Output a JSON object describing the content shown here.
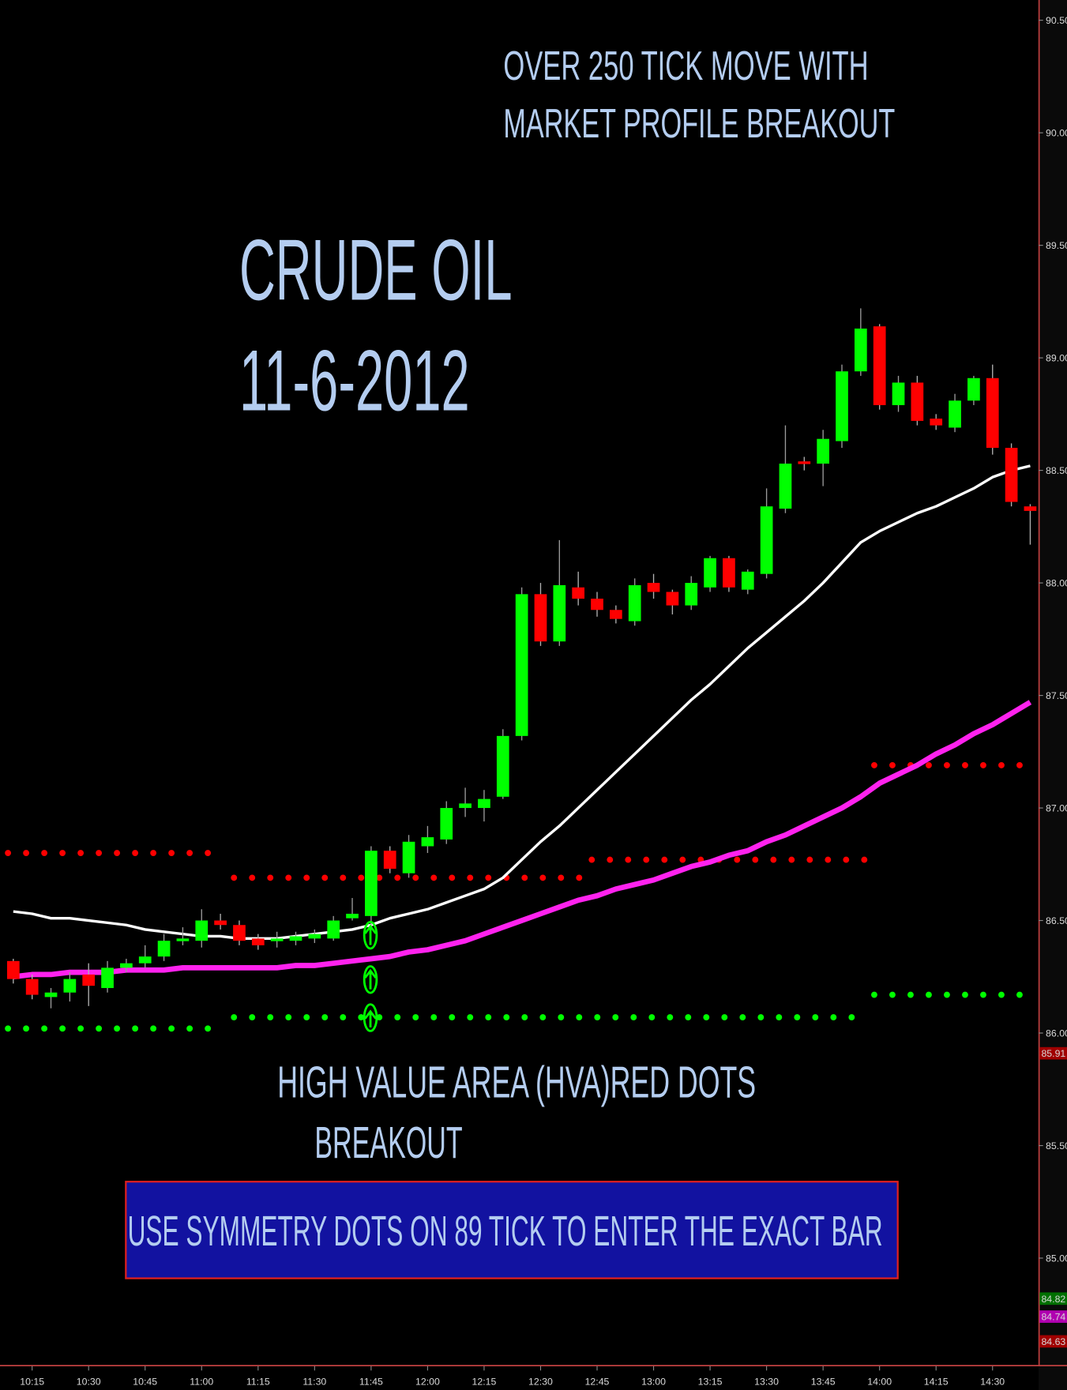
{
  "chart_data": {
    "type": "candlestick",
    "headline": [
      "OVER 250 TICK MOVE WITH",
      "MARKET PROFILE BREAKOUT"
    ],
    "title": [
      "CRUDE OIL",
      "11-6-2012"
    ],
    "note": [
      "HIGH VALUE AREA  (HVA)RED DOTS",
      "BREAKOUT"
    ],
    "banner": "USE SYMMETRY DOTS ON 89 TICK TO ENTER THE EXACT BAR",
    "categories": [
      null,
      "10:15",
      null,
      null,
      "10:30",
      null,
      null,
      "10:45",
      null,
      null,
      "11:00",
      null,
      null,
      "11:15",
      null,
      null,
      "11:30",
      null,
      null,
      "11:45",
      null,
      null,
      "12:00",
      null,
      null,
      "12:15",
      null,
      null,
      "12:30",
      null,
      null,
      "12:45",
      null,
      null,
      "13:00",
      null,
      null,
      "13:15",
      null,
      null,
      "13:30",
      null,
      null,
      "13:45",
      null,
      null,
      "14:00",
      null,
      null,
      "14:15",
      null,
      null,
      "14:30",
      null,
      null
    ],
    "open": [
      86.32,
      86.24,
      86.16,
      86.18,
      86.26,
      86.2,
      86.29,
      86.31,
      86.34,
      86.41,
      86.41,
      86.5,
      86.48,
      86.42,
      86.41,
      86.41,
      86.42,
      86.42,
      86.51,
      86.52,
      86.81,
      86.71,
      86.83,
      86.86,
      87.0,
      87.0,
      87.05,
      87.32,
      87.95,
      87.74,
      87.98,
      87.93,
      87.88,
      87.83,
      88.0,
      87.96,
      87.9,
      87.98,
      88.11,
      87.97,
      88.04,
      88.33,
      88.54,
      88.53,
      88.63,
      88.94,
      89.14,
      88.79,
      88.89,
      88.73,
      88.69,
      88.81,
      88.91,
      88.6,
      88.34
    ],
    "high": [
      86.33,
      86.26,
      86.2,
      86.27,
      86.31,
      86.32,
      86.33,
      86.39,
      86.44,
      86.47,
      86.55,
      86.53,
      86.5,
      86.44,
      86.45,
      86.45,
      86.46,
      86.52,
      86.6,
      86.83,
      86.83,
      86.88,
      86.92,
      87.03,
      87.09,
      87.08,
      87.35,
      87.98,
      88.0,
      88.19,
      88.05,
      87.96,
      87.9,
      88.02,
      88.04,
      87.97,
      88.03,
      88.12,
      88.12,
      88.06,
      88.42,
      88.7,
      88.56,
      88.68,
      88.97,
      89.22,
      89.15,
      88.92,
      88.92,
      88.75,
      88.84,
      88.92,
      88.97,
      88.62,
      88.35
    ],
    "low": [
      86.22,
      86.15,
      86.11,
      86.14,
      86.12,
      86.18,
      86.27,
      86.29,
      86.32,
      86.39,
      86.38,
      86.46,
      86.39,
      86.37,
      86.38,
      86.39,
      86.4,
      86.41,
      86.5,
      86.47,
      86.71,
      86.69,
      86.8,
      86.84,
      86.96,
      86.94,
      87.04,
      87.3,
      87.72,
      87.72,
      87.9,
      87.85,
      87.82,
      87.81,
      87.93,
      87.86,
      87.88,
      87.96,
      87.96,
      87.95,
      88.02,
      88.31,
      88.5,
      88.43,
      88.6,
      88.92,
      88.77,
      88.76,
      88.7,
      88.68,
      88.67,
      88.79,
      88.57,
      88.34,
      88.17
    ],
    "close": [
      86.24,
      86.17,
      86.18,
      86.24,
      86.21,
      86.29,
      86.31,
      86.34,
      86.41,
      86.42,
      86.5,
      86.48,
      86.41,
      86.39,
      86.42,
      86.43,
      86.44,
      86.5,
      86.53,
      86.81,
      86.73,
      86.85,
      86.87,
      87.0,
      87.02,
      87.04,
      87.32,
      87.95,
      87.74,
      87.99,
      87.93,
      87.88,
      87.84,
      87.99,
      87.96,
      87.9,
      88.0,
      88.11,
      87.98,
      88.05,
      88.34,
      88.53,
      88.53,
      88.64,
      88.94,
      89.13,
      88.79,
      88.89,
      88.72,
      88.7,
      88.81,
      88.91,
      88.6,
      88.36,
      88.32
    ],
    "up_color": "#00ff00",
    "down_color": "#ff0000",
    "lines": [
      {
        "color": "#ffffff",
        "values": [
          86.54,
          86.53,
          86.51,
          86.51,
          86.5,
          86.49,
          86.48,
          86.46,
          86.45,
          86.44,
          86.43,
          86.43,
          86.42,
          86.42,
          86.42,
          86.43,
          86.44,
          86.45,
          86.46,
          86.48,
          86.51,
          86.53,
          86.55,
          86.58,
          86.61,
          86.64,
          86.69,
          86.77,
          86.85,
          86.92,
          87.0,
          87.08,
          87.16,
          87.24,
          87.32,
          87.4,
          87.48,
          87.55,
          87.63,
          87.71,
          87.78,
          87.85,
          87.92,
          88.0,
          88.09,
          88.18,
          88.23,
          88.27,
          88.31,
          88.34,
          88.38,
          88.42,
          88.47,
          88.5,
          88.52
        ]
      },
      {
        "color": "#ff22ee",
        "values": [
          86.25,
          86.26,
          86.26,
          86.27,
          86.27,
          86.27,
          86.28,
          86.28,
          86.28,
          86.29,
          86.29,
          86.29,
          86.29,
          86.29,
          86.29,
          86.3,
          86.3,
          86.31,
          86.32,
          86.33,
          86.34,
          86.36,
          86.37,
          86.39,
          86.41,
          86.44,
          86.47,
          86.5,
          86.53,
          86.56,
          86.59,
          86.61,
          86.64,
          86.66,
          86.68,
          86.71,
          86.74,
          86.76,
          86.79,
          86.81,
          86.85,
          86.88,
          86.92,
          86.96,
          87.0,
          87.05,
          87.11,
          87.15,
          87.19,
          87.24,
          87.28,
          87.33,
          87.37,
          87.42,
          87.47
        ]
      }
    ],
    "levels": [
      {
        "value": 86.8,
        "start": 0,
        "end": 11,
        "color": "#ff0000"
      },
      {
        "value": 86.69,
        "start": 12,
        "end": 30,
        "color": "#ff0000"
      },
      {
        "value": 86.77,
        "start": 31,
        "end": 45,
        "color": "#ff0000"
      },
      {
        "value": 87.19,
        "start": 46,
        "end": 54,
        "color": "#ff0000"
      },
      {
        "value": 86.02,
        "start": 0,
        "end": 11,
        "color": "#00ff00"
      },
      {
        "value": 86.07,
        "start": 12,
        "end": 45,
        "color": "#00ff00"
      },
      {
        "value": 86.17,
        "start": 46,
        "end": 54,
        "color": "#00ff00"
      }
    ],
    "price_markers": [
      {
        "value": 85.91,
        "color": "#a00000"
      },
      {
        "value": 84.82,
        "color": "#007000"
      },
      {
        "value": 84.74,
        "color": "#b000b0"
      },
      {
        "value": 84.63,
        "color": "#a00000"
      }
    ],
    "ylim": [
      84.54,
      90.59
    ],
    "yticks": [
      {
        "value": 85,
        "label": "85.00"
      },
      {
        "value": 85.5,
        "label": "85.50"
      },
      {
        "value": 86,
        "label": "86.00"
      },
      {
        "value": 86.5,
        "label": "86.50"
      },
      {
        "value": 87,
        "label": "87.00"
      },
      {
        "value": 87.5,
        "label": "87.50"
      },
      {
        "value": 88,
        "label": "88.00"
      },
      {
        "value": 88.5,
        "label": "88.50"
      },
      {
        "value": 89,
        "label": "89.00"
      },
      {
        "value": 89.5,
        "label": "89.50"
      },
      {
        "value": 90,
        "label": "90.00"
      },
      {
        "value": 90.5,
        "label": "90.50"
      }
    ]
  }
}
